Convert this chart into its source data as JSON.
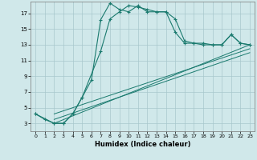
{
  "bg_color": "#d0e8ea",
  "grid_color": "#a8c8cc",
  "line_color": "#1a7a6e",
  "xlabel": "Humidex (Indice chaleur)",
  "xlim": [
    -0.5,
    23.5
  ],
  "ylim": [
    2,
    18.5
  ],
  "yticks": [
    3,
    5,
    7,
    9,
    11,
    13,
    15,
    17
  ],
  "xticks": [
    0,
    1,
    2,
    3,
    4,
    5,
    6,
    7,
    8,
    9,
    10,
    11,
    12,
    13,
    14,
    15,
    16,
    17,
    18,
    19,
    20,
    21,
    22,
    23
  ],
  "curve1_x": [
    0,
    1,
    2,
    3,
    4,
    5,
    6,
    7,
    8,
    9,
    10,
    11,
    12,
    13,
    14,
    15,
    16,
    17,
    18,
    19,
    20,
    21,
    22,
    23
  ],
  "curve1_y": [
    4.2,
    3.5,
    3.0,
    3.0,
    4.2,
    6.3,
    8.5,
    16.2,
    18.3,
    17.5,
    17.2,
    18.0,
    17.2,
    17.2,
    17.2,
    16.3,
    13.5,
    13.2,
    13.2,
    13.0,
    13.0,
    14.3,
    13.2,
    13.0
  ],
  "curve2_x": [
    0,
    2,
    3,
    4,
    5,
    7,
    8,
    9,
    10,
    11,
    12,
    13,
    14,
    15,
    16,
    17,
    18,
    19,
    20,
    21,
    22,
    23
  ],
  "curve2_y": [
    4.2,
    3.0,
    3.0,
    4.2,
    6.3,
    12.2,
    16.3,
    17.2,
    18.0,
    17.8,
    17.5,
    17.2,
    17.2,
    14.6,
    13.2,
    13.2,
    13.0,
    13.0,
    13.0,
    14.3,
    13.2,
    13.0
  ],
  "line1_x": [
    2,
    23
  ],
  "line1_y": [
    3.0,
    13.0
  ],
  "line2_x": [
    2,
    23
  ],
  "line2_y": [
    3.5,
    12.0
  ],
  "line3_x": [
    2,
    23
  ],
  "line3_y": [
    4.2,
    12.5
  ]
}
